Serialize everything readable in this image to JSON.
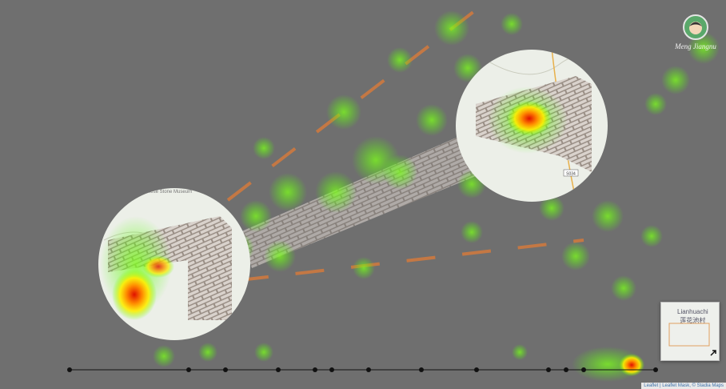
{
  "user": {
    "name": "Meng Jiangnu"
  },
  "lenses": [
    {
      "label": "Chinese Stone Museum"
    },
    {
      "road": "S034"
    }
  ],
  "minimap": {
    "place": "Lianhuachi",
    "place_local": "莲花池村"
  },
  "attribution": "Leaflet | Leaflet Mask, © Stadia Maps"
}
